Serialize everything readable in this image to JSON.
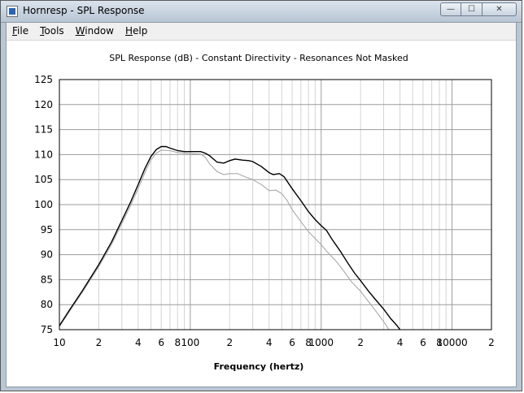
{
  "window": {
    "title": "Hornresp - SPL Response",
    "buttons": {
      "minimize": "—",
      "maximize": "☐",
      "close": "✕"
    }
  },
  "menu": {
    "items": [
      {
        "id": "file",
        "label": "File"
      },
      {
        "id": "tools",
        "label": "Tools"
      },
      {
        "id": "window",
        "label": "Window"
      },
      {
        "id": "help",
        "label": "Help"
      }
    ]
  },
  "chart_data": {
    "type": "line",
    "title": "SPL Response (dB) - Constant Directivity - Resonances Not Masked",
    "xlabel": "Frequency (hertz)",
    "ylabel": "",
    "xscale": "log",
    "xlim": [
      10,
      20000
    ],
    "ylim": [
      75,
      125
    ],
    "yticks": [
      75,
      80,
      85,
      90,
      95,
      100,
      105,
      110,
      115,
      120,
      125
    ],
    "xtick_labels": [
      {
        "x": 10,
        "label": "10"
      },
      {
        "x": 20,
        "label": "2"
      },
      {
        "x": 40,
        "label": "4"
      },
      {
        "x": 60,
        "label": "6"
      },
      {
        "x": 80,
        "label": "8"
      },
      {
        "x": 100,
        "label": "100"
      },
      {
        "x": 200,
        "label": "2"
      },
      {
        "x": 400,
        "label": "4"
      },
      {
        "x": 600,
        "label": "6"
      },
      {
        "x": 800,
        "label": "8"
      },
      {
        "x": 1000,
        "label": "1000"
      },
      {
        "x": 2000,
        "label": "2"
      },
      {
        "x": 4000,
        "label": "4"
      },
      {
        "x": 6000,
        "label": "6"
      },
      {
        "x": 8000,
        "label": "8"
      },
      {
        "x": 10000,
        "label": "10000"
      },
      {
        "x": 20000,
        "label": "2"
      }
    ],
    "grid": true,
    "series": [
      {
        "color": "#000000",
        "points": [
          [
            10,
            75.8
          ],
          [
            12,
            79
          ],
          [
            15,
            82.8
          ],
          [
            20,
            88
          ],
          [
            25,
            92.5
          ],
          [
            30,
            96.8
          ],
          [
            35,
            100.5
          ],
          [
            40,
            104
          ],
          [
            45,
            107.2
          ],
          [
            50,
            109.6
          ],
          [
            55,
            111
          ],
          [
            60,
            111.6
          ],
          [
            65,
            111.6
          ],
          [
            70,
            111.3
          ],
          [
            80,
            110.8
          ],
          [
            90,
            110.6
          ],
          [
            100,
            110.6
          ],
          [
            120,
            110.6
          ],
          [
            130,
            110.3
          ],
          [
            140,
            109.8
          ],
          [
            160,
            108.5
          ],
          [
            180,
            108.3
          ],
          [
            200,
            108.8
          ],
          [
            220,
            109.1
          ],
          [
            250,
            108.9
          ],
          [
            280,
            108.8
          ],
          [
            300,
            108.6
          ],
          [
            350,
            107.6
          ],
          [
            400,
            106.4
          ],
          [
            430,
            106.0
          ],
          [
            480,
            106.2
          ],
          [
            520,
            105.6
          ],
          [
            600,
            103.2
          ],
          [
            700,
            100.8
          ],
          [
            800,
            98.6
          ],
          [
            900,
            97.0
          ],
          [
            1000,
            95.8
          ],
          [
            1100,
            94.8
          ],
          [
            1200,
            93.2
          ],
          [
            1400,
            90.7
          ],
          [
            1600,
            88.3
          ],
          [
            1800,
            86.3
          ],
          [
            2000,
            84.8
          ],
          [
            2300,
            82.7
          ],
          [
            2600,
            81.0
          ],
          [
            3000,
            79.1
          ],
          [
            3400,
            77.2
          ],
          [
            3800,
            75.8
          ],
          [
            4000,
            75
          ]
        ]
      },
      {
        "color": "#a8a8a8",
        "points": [
          [
            10,
            75.6
          ],
          [
            12,
            78.7
          ],
          [
            15,
            82.5
          ],
          [
            20,
            87.6
          ],
          [
            25,
            92.0
          ],
          [
            30,
            96.2
          ],
          [
            35,
            99.8
          ],
          [
            40,
            103.2
          ],
          [
            45,
            106.4
          ],
          [
            50,
            108.9
          ],
          [
            55,
            110.3
          ],
          [
            60,
            110.9
          ],
          [
            70,
            110.8
          ],
          [
            80,
            110.4
          ],
          [
            100,
            110.2
          ],
          [
            120,
            110.1
          ],
          [
            130,
            109.5
          ],
          [
            140,
            108.2
          ],
          [
            160,
            106.6
          ],
          [
            180,
            106.0
          ],
          [
            200,
            106.2
          ],
          [
            230,
            106.2
          ],
          [
            260,
            105.6
          ],
          [
            300,
            105.0
          ],
          [
            350,
            104.0
          ],
          [
            400,
            102.8
          ],
          [
            450,
            102.9
          ],
          [
            500,
            102.2
          ],
          [
            550,
            100.8
          ],
          [
            600,
            99.0
          ],
          [
            700,
            96.6
          ],
          [
            800,
            94.6
          ],
          [
            900,
            93.2
          ],
          [
            1000,
            92.0
          ],
          [
            1100,
            90.7
          ],
          [
            1300,
            88.7
          ],
          [
            1500,
            86.6
          ],
          [
            1700,
            84.6
          ],
          [
            2000,
            82.7
          ],
          [
            2300,
            80.6
          ],
          [
            2600,
            78.8
          ],
          [
            3000,
            76.6
          ],
          [
            3300,
            75
          ]
        ]
      }
    ]
  }
}
